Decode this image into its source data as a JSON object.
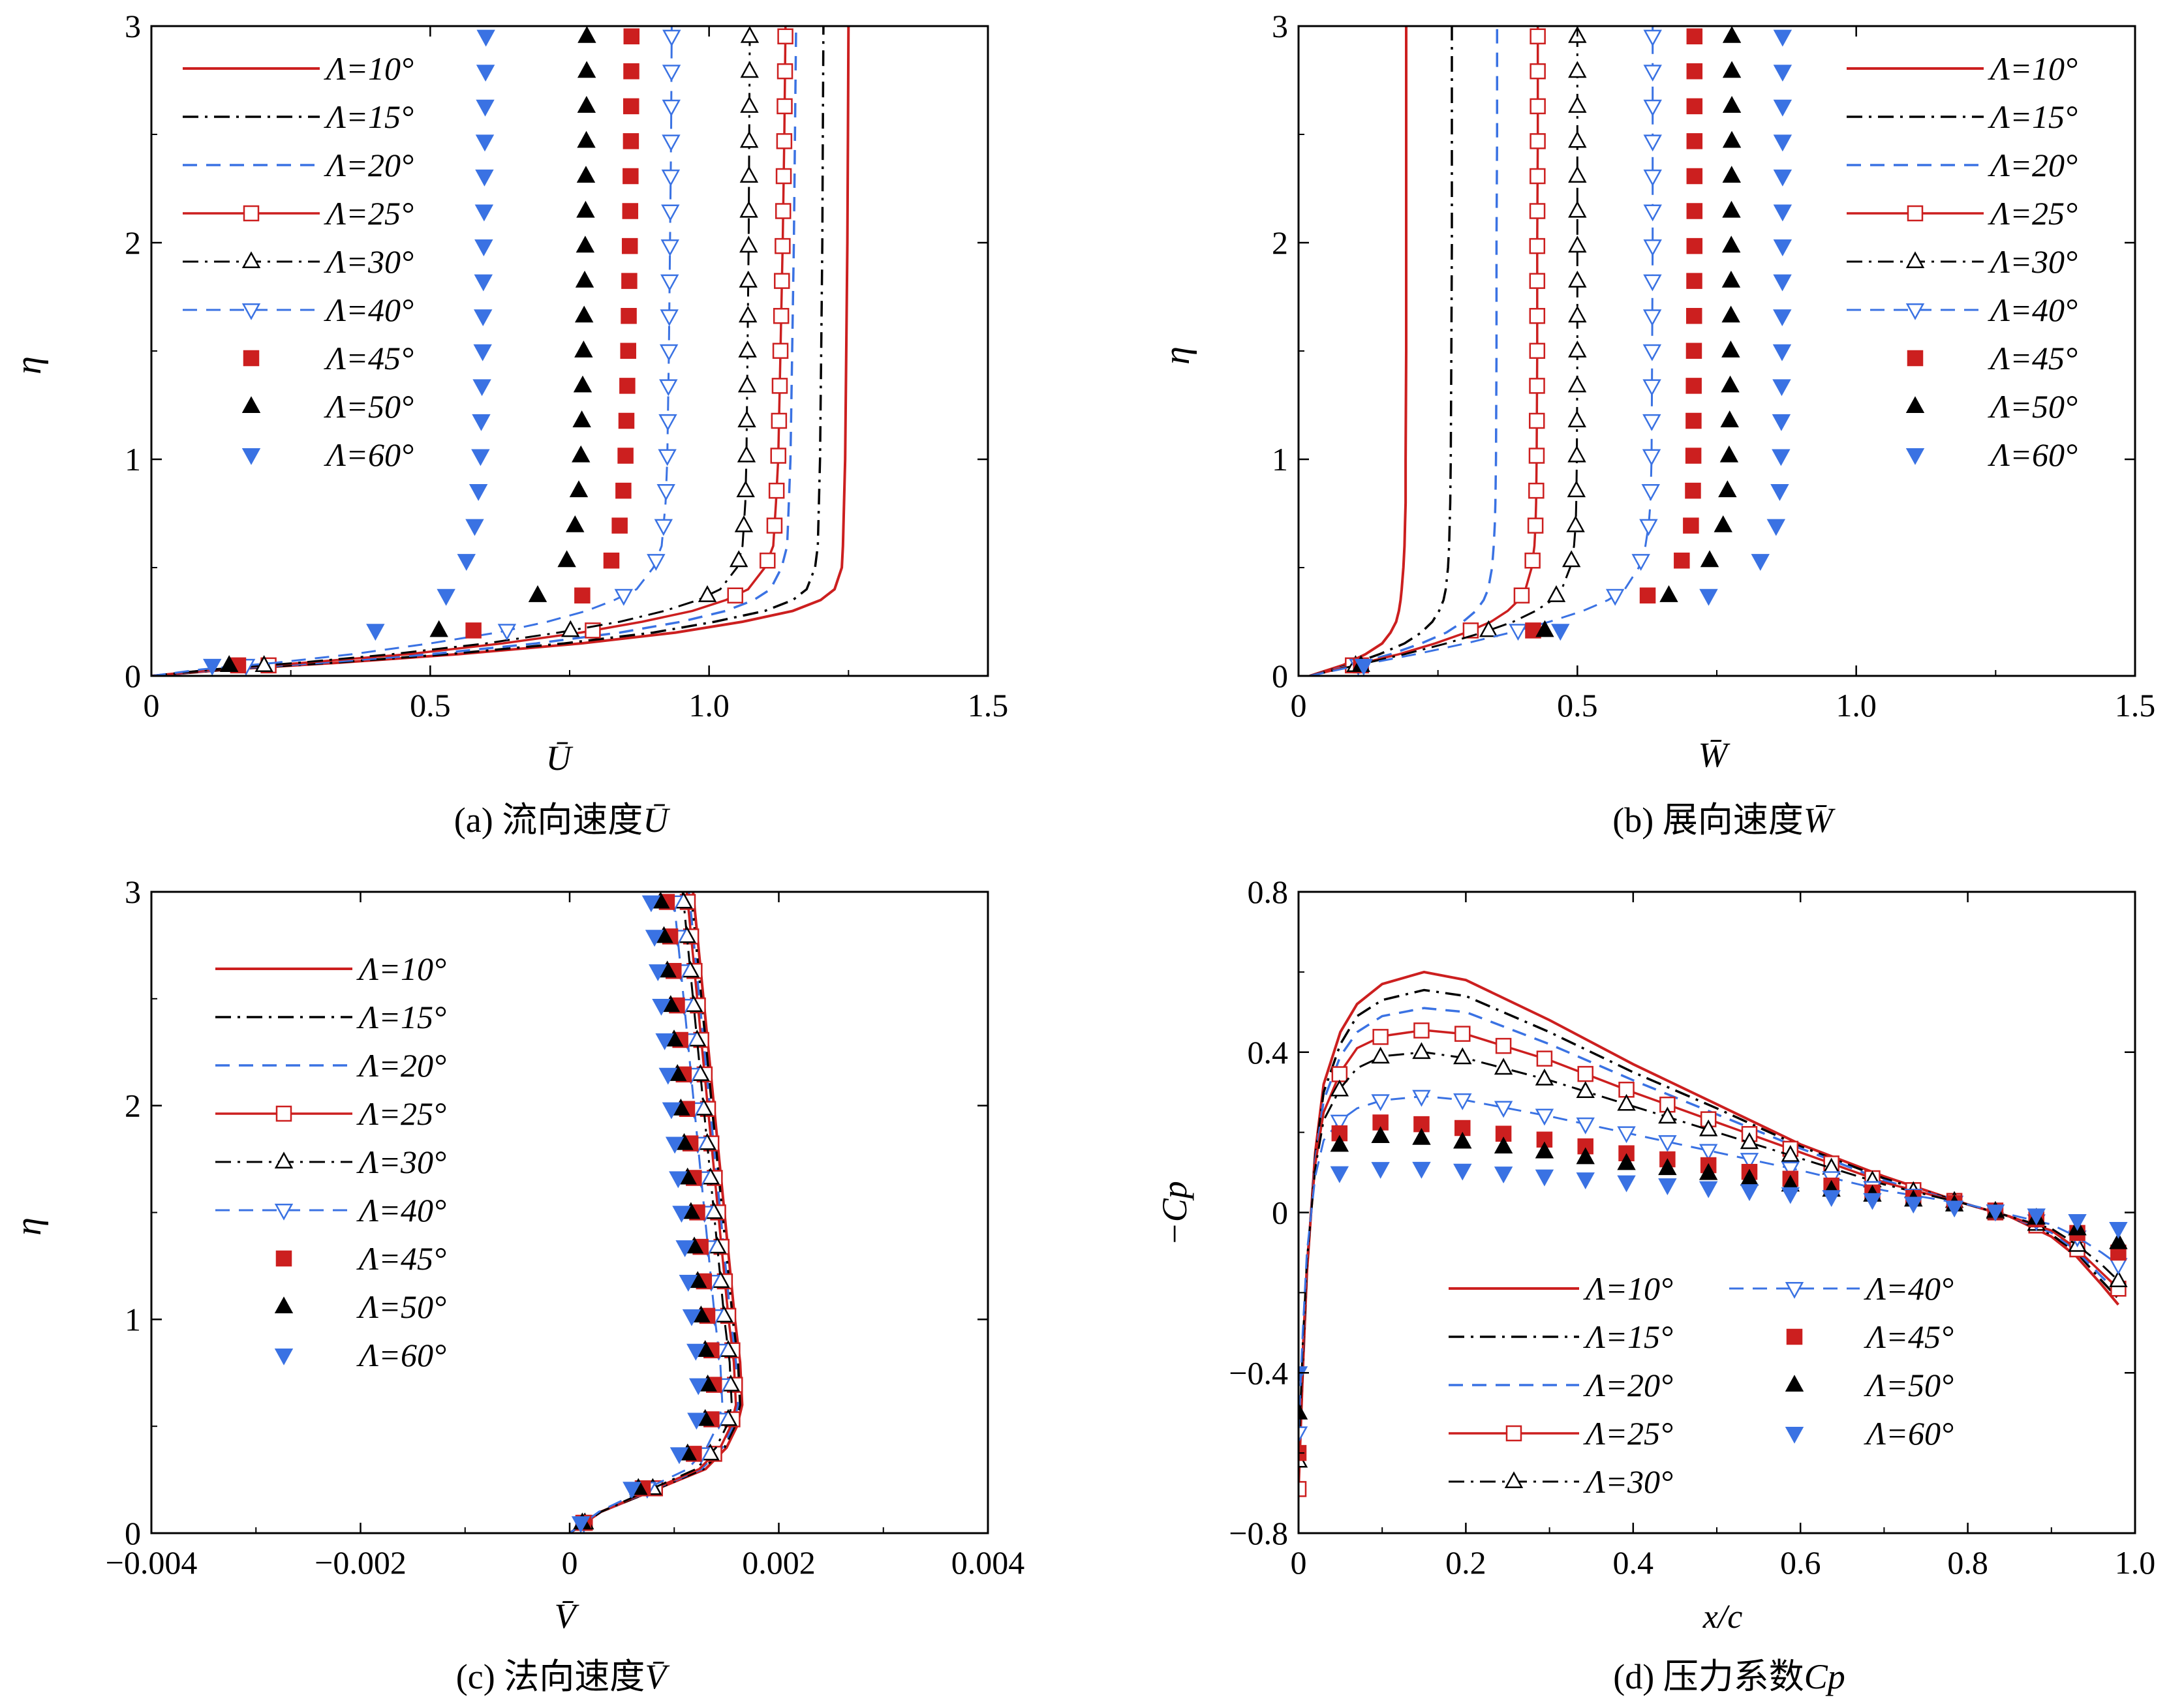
{
  "colors": {
    "red": "#cc1f1f",
    "black": "#000000",
    "blue": "#3a72e3"
  },
  "legend_labels": [
    "Λ=10°",
    "Λ=15°",
    "Λ=20°",
    "Λ=25°",
    "Λ=30°",
    "Λ=40°",
    "Λ=45°",
    "Λ=50°",
    "Λ=60°"
  ],
  "chart_data": [
    {
      "id": "a",
      "type": "line",
      "caption_prefix": "(a) 流向速度",
      "caption_symbol": "Ū",
      "title": "(a) 流向速度Ū",
      "xlabel": "Ū",
      "ylabel": "η",
      "xlim": [
        0,
        1.5
      ],
      "ylim": [
        0,
        3
      ],
      "xticks": [
        0,
        0.5,
        1.0,
        1.5
      ],
      "xtick_labels": [
        "0",
        "0.5",
        "1.0",
        "1.5"
      ],
      "yticks": [
        0,
        1,
        2,
        3
      ],
      "ytick_labels": [
        "0",
        "1",
        "2",
        "3"
      ],
      "legend_position": "top-left",
      "y": [
        0,
        0.03,
        0.06,
        0.1,
        0.15,
        0.2,
        0.25,
        0.3,
        0.35,
        0.4,
        0.5,
        0.6,
        0.8,
        1.0,
        1.5,
        2.0,
        2.5,
        3.0
      ],
      "series": [
        {
          "name": "Λ=10°",
          "x": [
            0,
            0.14,
            0.33,
            0.55,
            0.77,
            0.94,
            1.06,
            1.15,
            1.2,
            1.225,
            1.238,
            1.24,
            1.242,
            1.244,
            1.246,
            1.248,
            1.249,
            1.25
          ]
        },
        {
          "name": "Λ=15°",
          "x": [
            0,
            0.135,
            0.32,
            0.53,
            0.74,
            0.9,
            1.01,
            1.1,
            1.15,
            1.175,
            1.19,
            1.195,
            1.197,
            1.199,
            1.201,
            1.203,
            1.204,
            1.205
          ]
        },
        {
          "name": "Λ=20°",
          "x": [
            0,
            0.125,
            0.3,
            0.5,
            0.69,
            0.84,
            0.95,
            1.03,
            1.08,
            1.11,
            1.13,
            1.14,
            1.143,
            1.146,
            1.149,
            1.152,
            1.154,
            1.156
          ]
        },
        {
          "name": "Λ=25°",
          "x": [
            0,
            0.115,
            0.27,
            0.46,
            0.63,
            0.77,
            0.88,
            0.97,
            1.03,
            1.07,
            1.1,
            1.115,
            1.12,
            1.124,
            1.128,
            1.132,
            1.135,
            1.137
          ]
        },
        {
          "name": "Λ=30°",
          "x": [
            0,
            0.11,
            0.26,
            0.43,
            0.6,
            0.73,
            0.84,
            0.92,
            0.98,
            1.02,
            1.05,
            1.06,
            1.065,
            1.067,
            1.069,
            1.071,
            1.072,
            1.073
          ]
        },
        {
          "name": "Λ=40°",
          "x": [
            0,
            0.09,
            0.22,
            0.36,
            0.5,
            0.62,
            0.71,
            0.78,
            0.83,
            0.87,
            0.9,
            0.915,
            0.922,
            0.925,
            0.928,
            0.93,
            0.932,
            0.933
          ]
        },
        {
          "name": "Λ=45°",
          "x": [
            0,
            0.085,
            0.2,
            0.33,
            0.46,
            0.56,
            0.65,
            0.71,
            0.76,
            0.79,
            0.82,
            0.835,
            0.845,
            0.85,
            0.855,
            0.858,
            0.86,
            0.861
          ]
        },
        {
          "name": "Λ=50°",
          "x": [
            0,
            0.075,
            0.18,
            0.3,
            0.41,
            0.5,
            0.58,
            0.64,
            0.68,
            0.71,
            0.74,
            0.755,
            0.765,
            0.77,
            0.775,
            0.778,
            0.78,
            0.781
          ]
        },
        {
          "name": "Λ=60°",
          "x": [
            0,
            0.06,
            0.14,
            0.23,
            0.32,
            0.39,
            0.45,
            0.49,
            0.52,
            0.54,
            0.56,
            0.575,
            0.585,
            0.59,
            0.594,
            0.596,
            0.598,
            0.6
          ]
        }
      ]
    },
    {
      "id": "b",
      "type": "line",
      "caption_prefix": "(b) 展向速度",
      "caption_symbol": "W̄",
      "title": "(b) 展向速度W̄",
      "xlabel": "W̄",
      "ylabel": "η",
      "xlim": [
        0,
        1.5
      ],
      "ylim": [
        0,
        3
      ],
      "xticks": [
        0,
        0.5,
        1.0,
        1.5
      ],
      "xtick_labels": [
        "0",
        "0.5",
        "1.0",
        "1.5"
      ],
      "yticks": [
        0,
        1,
        2,
        3
      ],
      "ytick_labels": [
        "0",
        "1",
        "2",
        "3"
      ],
      "legend_position": "top-right",
      "y": [
        0,
        0.05,
        0.1,
        0.15,
        0.2,
        0.25,
        0.3,
        0.35,
        0.4,
        0.5,
        0.6,
        0.7,
        0.8,
        1.0,
        1.5,
        2.0,
        2.5,
        3.0
      ],
      "series": [
        {
          "name": "Λ=10°",
          "x": [
            0.02,
            0.08,
            0.12,
            0.15,
            0.165,
            0.175,
            0.18,
            0.183,
            0.185,
            0.188,
            0.19,
            0.191,
            0.192,
            0.192,
            0.193,
            0.193,
            0.193,
            0.193
          ]
        },
        {
          "name": "Λ=15°",
          "x": [
            0.02,
            0.09,
            0.145,
            0.19,
            0.22,
            0.24,
            0.252,
            0.26,
            0.264,
            0.268,
            0.27,
            0.271,
            0.272,
            0.273,
            0.274,
            0.275,
            0.275,
            0.275
          ]
        },
        {
          "name": "Λ=20°",
          "x": [
            0.02,
            0.095,
            0.165,
            0.22,
            0.265,
            0.295,
            0.318,
            0.332,
            0.34,
            0.347,
            0.35,
            0.352,
            0.353,
            0.354,
            0.355,
            0.355,
            0.356,
            0.356
          ]
        },
        {
          "name": "Λ=25°",
          "x": [
            0.02,
            0.1,
            0.18,
            0.245,
            0.3,
            0.345,
            0.375,
            0.395,
            0.407,
            0.418,
            0.423,
            0.425,
            0.426,
            0.427,
            0.428,
            0.428,
            0.429,
            0.429
          ]
        },
        {
          "name": "Λ=30°",
          "x": [
            0.02,
            0.105,
            0.19,
            0.265,
            0.33,
            0.385,
            0.425,
            0.455,
            0.472,
            0.487,
            0.494,
            0.497,
            0.498,
            0.499,
            0.5,
            0.5,
            0.5,
            0.5
          ]
        },
        {
          "name": "Λ=40°",
          "x": [
            0.02,
            0.11,
            0.21,
            0.3,
            0.38,
            0.45,
            0.51,
            0.555,
            0.585,
            0.61,
            0.622,
            0.628,
            0.631,
            0.633,
            0.634,
            0.635,
            0.635,
            0.635
          ]
        },
        {
          "name": "Λ=45°",
          "x": [
            0.02,
            0.115,
            0.22,
            0.315,
            0.405,
            0.485,
            0.555,
            0.61,
            0.648,
            0.682,
            0.698,
            0.704,
            0.707,
            0.708,
            0.709,
            0.71,
            0.71,
            0.71
          ]
        },
        {
          "name": "Λ=50°",
          "x": [
            0.02,
            0.115,
            0.225,
            0.33,
            0.425,
            0.51,
            0.585,
            0.645,
            0.69,
            0.73,
            0.752,
            0.762,
            0.768,
            0.772,
            0.775,
            0.776,
            0.777,
            0.777
          ]
        },
        {
          "name": "Λ=60°",
          "x": [
            0.02,
            0.12,
            0.235,
            0.345,
            0.45,
            0.55,
            0.635,
            0.71,
            0.77,
            0.82,
            0.845,
            0.857,
            0.862,
            0.865,
            0.867,
            0.868,
            0.868,
            0.868
          ]
        }
      ]
    },
    {
      "id": "c",
      "type": "line",
      "caption_prefix": "(c) 法向速度",
      "caption_symbol": "V̄",
      "title": "(c) 法向速度V̄",
      "xlabel": "V̄",
      "ylabel": "η",
      "xlim": [
        -0.004,
        0.004
      ],
      "ylim": [
        0,
        3
      ],
      "xticks": [
        -0.004,
        -0.002,
        0,
        0.002,
        0.004
      ],
      "xtick_labels": [
        "−0.004",
        "−0.002",
        "0",
        "0.002",
        "0.004"
      ],
      "yticks": [
        0,
        1,
        2,
        3
      ],
      "ytick_labels": [
        "0",
        "1",
        "2",
        "3"
      ],
      "legend_position": "top-left",
      "y": [
        0,
        0.1,
        0.2,
        0.3,
        0.4,
        0.5,
        0.6,
        0.8,
        1.0,
        1.5,
        2.0,
        2.5,
        3.0
      ],
      "series": [
        {
          "name": "Λ=10°",
          "x": [
            0,
            0.0003,
            0.0008,
            0.0013,
            0.0015,
            0.0016,
            0.00165,
            0.00163,
            0.00158,
            0.00148,
            0.00138,
            0.00128,
            0.00118
          ]
        },
        {
          "name": "Λ=15°",
          "x": [
            0,
            0.0003,
            0.0008,
            0.00128,
            0.00148,
            0.00158,
            0.00163,
            0.00161,
            0.00156,
            0.00146,
            0.00136,
            0.00126,
            0.00116
          ]
        },
        {
          "name": "Λ=20°",
          "x": [
            0,
            0.0003,
            0.00078,
            0.00126,
            0.00146,
            0.00156,
            0.00161,
            0.00159,
            0.00154,
            0.00144,
            0.00134,
            0.00124,
            0.00114
          ]
        },
        {
          "name": "Λ=25°",
          "x": [
            0,
            0.0003,
            0.00077,
            0.00124,
            0.00144,
            0.00154,
            0.00159,
            0.00157,
            0.00152,
            0.00142,
            0.00132,
            0.00122,
            0.00112
          ]
        },
        {
          "name": "Λ=30°",
          "x": [
            0,
            0.0003,
            0.00075,
            0.00121,
            0.0014,
            0.0015,
            0.00155,
            0.00153,
            0.00148,
            0.00138,
            0.00128,
            0.00118,
            0.00108
          ]
        },
        {
          "name": "Λ=40°",
          "x": [
            0,
            0.00028,
            0.0007,
            0.00113,
            0.00131,
            0.00141,
            0.00146,
            0.00144,
            0.00139,
            0.00129,
            0.00119,
            0.00109,
            0.00099
          ]
        },
        {
          "name": "Λ=45°",
          "x": [
            0,
            0.00027,
            0.00066,
            0.00106,
            0.00124,
            0.00134,
            0.00139,
            0.00137,
            0.00132,
            0.00122,
            0.00112,
            0.00102,
            0.00092
          ]
        },
        {
          "name": "Λ=50°",
          "x": [
            0,
            0.00025,
            0.00062,
            0.001,
            0.00118,
            0.00128,
            0.00133,
            0.00131,
            0.00126,
            0.00116,
            0.00106,
            0.00096,
            0.00086
          ]
        },
        {
          "name": "Λ=60°",
          "x": [
            0,
            0.00022,
            0.00056,
            0.00092,
            0.0011,
            0.0012,
            0.00124,
            0.00122,
            0.00117,
            0.00107,
            0.00097,
            0.00087,
            0.00077
          ]
        }
      ]
    },
    {
      "id": "d",
      "type": "line",
      "caption_prefix": "(d) 压力系数",
      "caption_symbol": "Cp",
      "title": "(d) 压力系数Cp",
      "xlabel": "x/c",
      "ylabel": "−Cp",
      "xlim": [
        0,
        1.0
      ],
      "ylim": [
        -0.8,
        0.8
      ],
      "xticks": [
        0,
        0.2,
        0.4,
        0.6,
        0.8,
        1.0
      ],
      "xtick_labels": [
        "0",
        "0.2",
        "0.4",
        "0.6",
        "0.8",
        "1.0"
      ],
      "yticks": [
        -0.8,
        -0.4,
        0,
        0.4,
        0.8
      ],
      "ytick_labels": [
        "−0.8",
        "−0.4",
        "0",
        "0.4",
        "0.8"
      ],
      "legend_position": "bottom (two columns)",
      "x": [
        0,
        0.005,
        0.01,
        0.02,
        0.03,
        0.05,
        0.07,
        0.1,
        0.15,
        0.2,
        0.3,
        0.4,
        0.5,
        0.6,
        0.7,
        0.8,
        0.85,
        0.9,
        0.93,
        0.96,
        0.98
      ],
      "series": [
        {
          "name": "Λ=10°",
          "y": [
            -0.69,
            -0.4,
            -0.15,
            0.15,
            0.32,
            0.45,
            0.52,
            0.57,
            0.6,
            0.58,
            0.48,
            0.37,
            0.27,
            0.17,
            0.09,
            0.02,
            -0.01,
            -0.06,
            -0.11,
            -0.18,
            -0.23
          ]
        },
        {
          "name": "Λ=15°",
          "y": [
            -0.66,
            -0.38,
            -0.14,
            0.14,
            0.3,
            0.42,
            0.49,
            0.53,
            0.555,
            0.54,
            0.45,
            0.35,
            0.26,
            0.165,
            0.085,
            0.02,
            -0.01,
            -0.055,
            -0.1,
            -0.17,
            -0.215
          ]
        },
        {
          "name": "Λ=20°",
          "y": [
            -0.64,
            -0.36,
            -0.13,
            0.13,
            0.28,
            0.39,
            0.45,
            0.49,
            0.51,
            0.5,
            0.42,
            0.33,
            0.245,
            0.16,
            0.08,
            0.02,
            -0.01,
            -0.05,
            -0.095,
            -0.16,
            -0.2
          ]
        },
        {
          "name": "Λ=25°",
          "y": [
            -0.69,
            -0.35,
            -0.13,
            0.12,
            0.25,
            0.35,
            0.41,
            0.44,
            0.455,
            0.445,
            0.38,
            0.3,
            0.225,
            0.15,
            0.075,
            0.02,
            -0.01,
            -0.045,
            -0.09,
            -0.15,
            -0.19
          ]
        },
        {
          "name": "Λ=30°",
          "y": [
            -0.62,
            -0.33,
            -0.12,
            0.11,
            0.23,
            0.31,
            0.36,
            0.39,
            0.4,
            0.385,
            0.33,
            0.265,
            0.2,
            0.135,
            0.07,
            0.02,
            -0.01,
            -0.04,
            -0.08,
            -0.13,
            -0.17
          ]
        },
        {
          "name": "Λ=40°",
          "y": [
            -0.55,
            -0.3,
            -0.1,
            0.09,
            0.18,
            0.23,
            0.26,
            0.28,
            0.29,
            0.28,
            0.24,
            0.195,
            0.15,
            0.105,
            0.055,
            0.02,
            -0.005,
            -0.03,
            -0.06,
            -0.1,
            -0.13
          ]
        },
        {
          "name": "Λ=45°",
          "y": [
            -0.6,
            -0.32,
            -0.1,
            0.08,
            0.15,
            0.2,
            0.22,
            0.225,
            0.22,
            0.21,
            0.18,
            0.145,
            0.115,
            0.08,
            0.045,
            0.02,
            -0.003,
            -0.025,
            -0.05,
            -0.08,
            -0.1
          ]
        },
        {
          "name": "Λ=50°",
          "y": [
            -0.5,
            -0.27,
            -0.08,
            0.07,
            0.13,
            0.17,
            0.185,
            0.19,
            0.185,
            0.175,
            0.15,
            0.12,
            0.095,
            0.065,
            0.04,
            0.015,
            -0.003,
            -0.02,
            -0.04,
            -0.06,
            -0.075
          ]
        },
        {
          "name": "Λ=60°",
          "y": [
            -0.4,
            -0.2,
            -0.05,
            0.04,
            0.08,
            0.1,
            0.105,
            0.11,
            0.11,
            0.105,
            0.09,
            0.075,
            0.06,
            0.045,
            0.03,
            0.01,
            0.0,
            -0.01,
            -0.02,
            -0.03,
            -0.04
          ]
        }
      ]
    }
  ]
}
